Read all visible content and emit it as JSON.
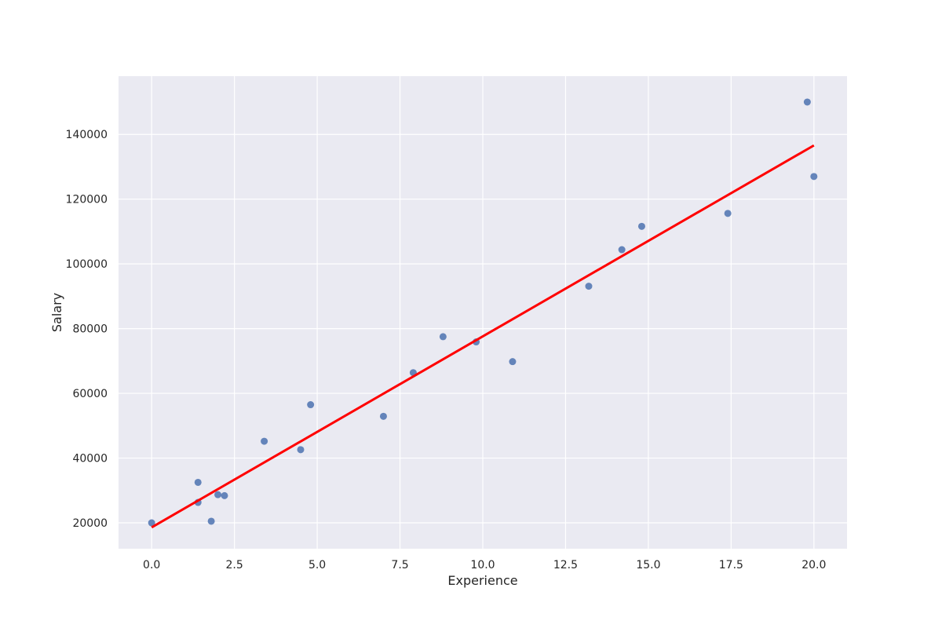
{
  "chart_data": {
    "type": "scatter",
    "title": "",
    "xlabel": "Experience",
    "ylabel": "Salary",
    "xlim": [
      -1.0,
      21.0
    ],
    "ylim": [
      12000,
      158000
    ],
    "xticks": [
      0.0,
      2.5,
      5.0,
      7.5,
      10.0,
      12.5,
      15.0,
      17.5,
      20.0
    ],
    "xtick_labels": [
      "0.0",
      "2.5",
      "5.0",
      "7.5",
      "10.0",
      "12.5",
      "15.0",
      "17.5",
      "20.0"
    ],
    "yticks": [
      20000,
      40000,
      60000,
      80000,
      100000,
      120000,
      140000
    ],
    "ytick_labels": [
      "20000",
      "40000",
      "60000",
      "80000",
      "100000",
      "120000",
      "140000"
    ],
    "grid": true,
    "colors": {
      "background": "#EAEAF2",
      "grid": "#FFFFFF",
      "points": "#4C72B0",
      "fit_line": "#FF0000"
    },
    "series": [
      {
        "kind": "points",
        "x": [
          0.0,
          1.4,
          1.4,
          1.8,
          2.0,
          2.2,
          3.4,
          4.5,
          4.8,
          7.0,
          7.9,
          8.8,
          9.8,
          10.9,
          13.2,
          14.2,
          14.8,
          17.4,
          19.8,
          20.0
        ],
        "y": [
          20000,
          32500,
          26300,
          20500,
          28700,
          28400,
          45200,
          42600,
          56500,
          52900,
          66400,
          77500,
          75900,
          69800,
          93100,
          104400,
          111600,
          115600,
          150000,
          127000
        ]
      },
      {
        "kind": "regression-line",
        "x": [
          0.0,
          20.0
        ],
        "y": [
          18600,
          136600
        ]
      }
    ]
  }
}
